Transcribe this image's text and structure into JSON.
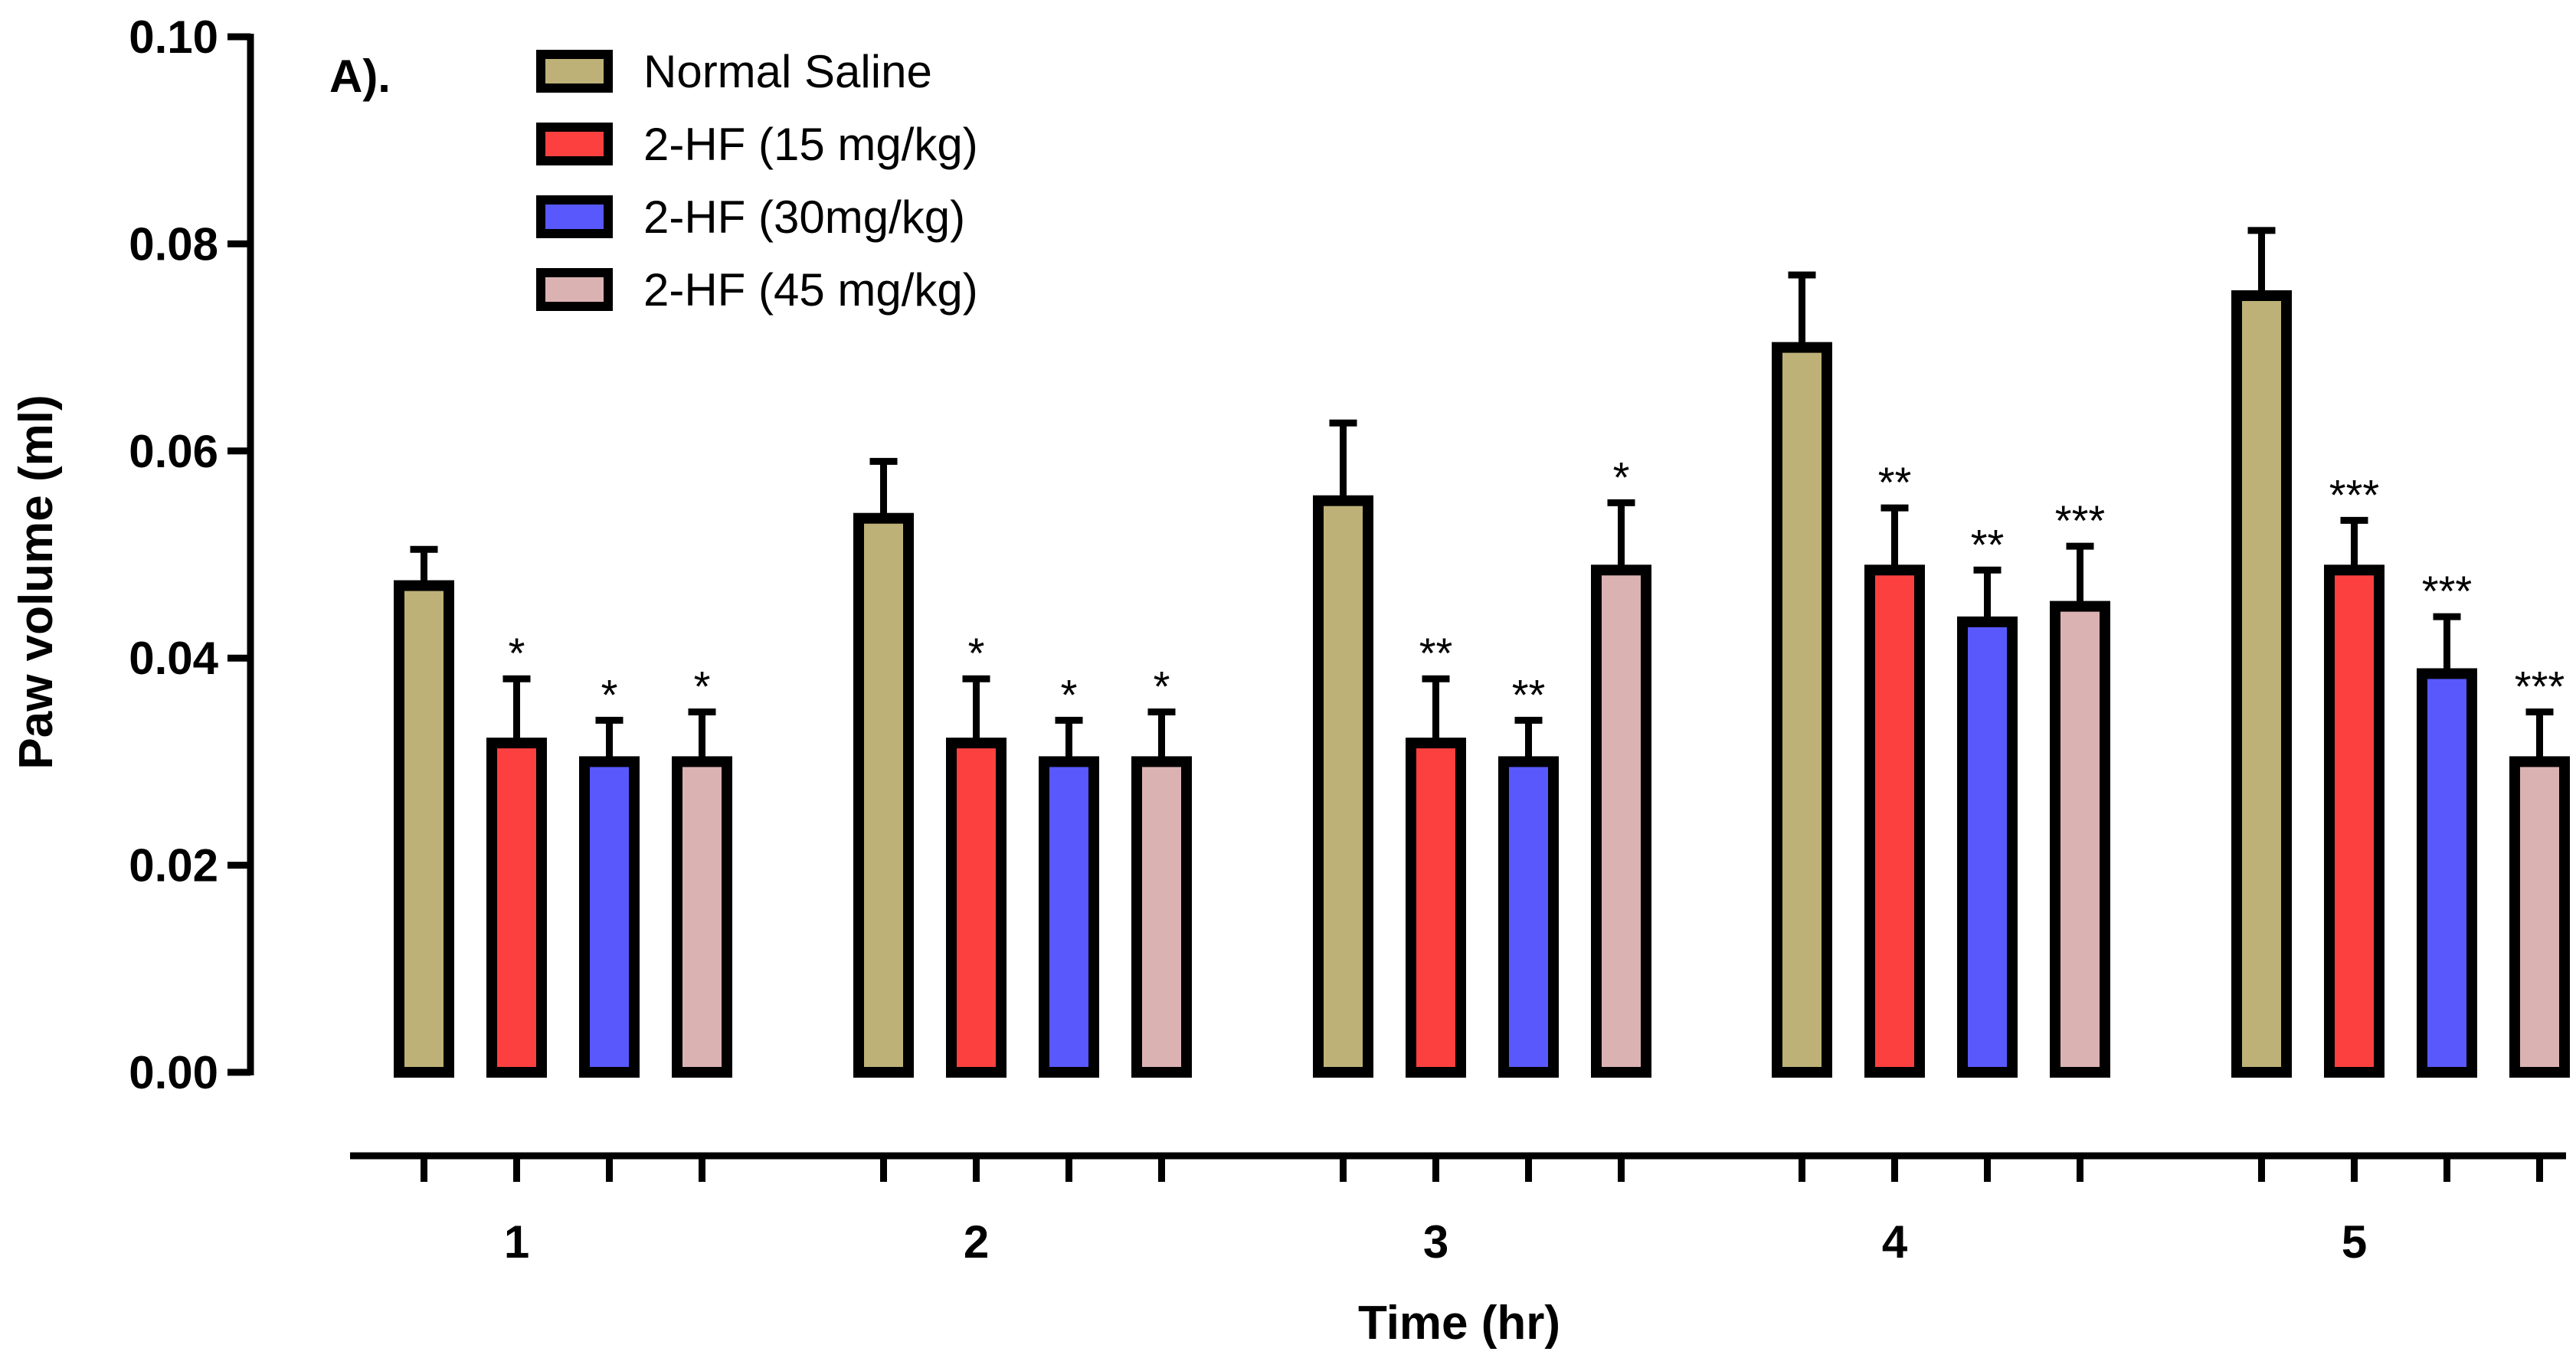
{
  "chart_data": {
    "type": "bar",
    "panel_label": "A).",
    "title": "",
    "xlabel": "Time (hr)",
    "ylabel": "Paw volume (ml)",
    "ylim": [
      0,
      0.1
    ],
    "yticks": [
      "0.00",
      "0.02",
      "0.04",
      "0.06",
      "0.08",
      "0.10"
    ],
    "ytick_values": [
      0,
      0.02,
      0.04,
      0.06,
      0.08,
      0.1
    ],
    "categories": [
      "1",
      "2",
      "3",
      "4",
      "5"
    ],
    "legend_position": "top-left",
    "series": [
      {
        "name": "Normal Saline",
        "color": "#bdb177",
        "values": [
          0.047,
          0.0535,
          0.0552,
          0.07,
          0.075
        ],
        "errors": [
          0.0035,
          0.0055,
          0.0075,
          0.007,
          0.0063
        ],
        "significance": [
          "",
          "",
          "",
          "",
          ""
        ]
      },
      {
        "name": "2-HF (15 mg/kg)",
        "color": "#fc4040",
        "values": [
          0.0318,
          0.0318,
          0.0318,
          0.0485,
          0.0485
        ],
        "errors": [
          0.0062,
          0.0062,
          0.0062,
          0.006,
          0.0048
        ],
        "significance": [
          "*",
          "*",
          "**",
          "**",
          "***"
        ]
      },
      {
        "name": "2-HF (30mg/kg)",
        "color": "#5858fc",
        "values": [
          0.03,
          0.03,
          0.03,
          0.0435,
          0.0385
        ],
        "errors": [
          0.004,
          0.004,
          0.004,
          0.005,
          0.0055
        ],
        "significance": [
          "*",
          "*",
          "**",
          "**",
          "***"
        ]
      },
      {
        "name": "2-HF (45 mg/kg)",
        "color": "#dbb2b2",
        "values": [
          0.03,
          0.03,
          0.0485,
          0.045,
          0.03
        ],
        "errors": [
          0.0048,
          0.0048,
          0.0065,
          0.0058,
          0.0048
        ],
        "significance": [
          "*",
          "*",
          "*",
          "***",
          "***"
        ]
      }
    ]
  }
}
